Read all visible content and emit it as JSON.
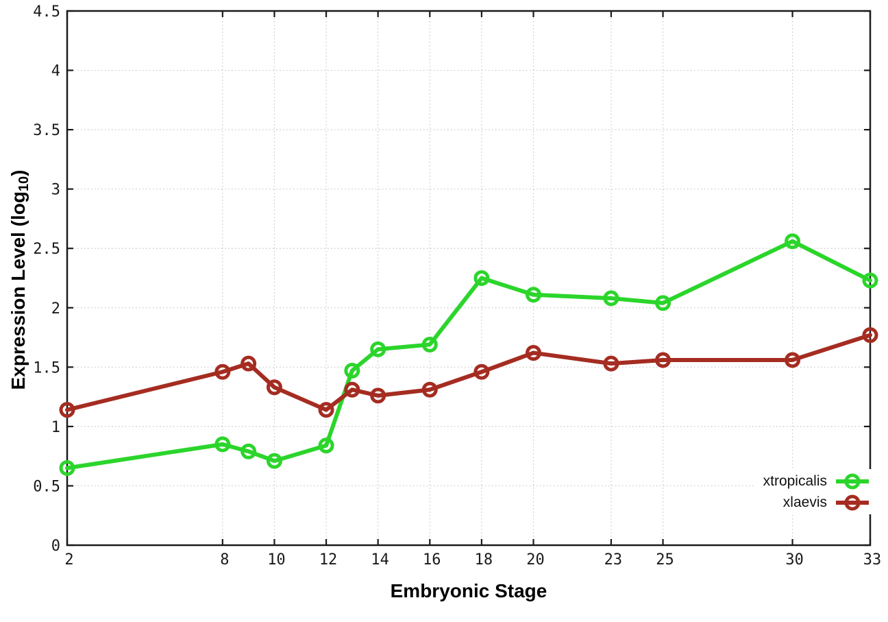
{
  "chart_data": {
    "type": "line",
    "title": "",
    "xlabel": "Embryonic Stage",
    "ylabel": "Expression Level (log10)",
    "xlim": [
      2,
      33
    ],
    "ylim": [
      0,
      4.5
    ],
    "grid": true,
    "legend_position": "bottom-right",
    "x": [
      2,
      8,
      9,
      10,
      12,
      13,
      14,
      16,
      18,
      20,
      23,
      25,
      30,
      33
    ],
    "xticks": [
      2,
      8,
      10,
      12,
      14,
      16,
      18,
      20,
      23,
      25,
      30,
      33
    ],
    "xtick_labels": [
      "2",
      "8",
      "10",
      "12",
      "14",
      "16",
      "18",
      "20",
      "23",
      "25",
      "30",
      "33"
    ],
    "yticks": [
      0,
      0.5,
      1,
      1.5,
      2,
      2.5,
      3,
      3.5,
      4,
      4.5
    ],
    "ytick_labels": [
      "0",
      "0.5",
      "1",
      "1.5",
      "2",
      "2.5",
      "3",
      "3.5",
      "4",
      "4.5"
    ],
    "series": [
      {
        "name": "xtropicalis",
        "color": "#2bd52b",
        "values": [
          0.65,
          0.85,
          0.79,
          0.71,
          0.84,
          1.47,
          1.65,
          1.69,
          2.25,
          2.11,
          2.08,
          2.04,
          2.56,
          2.23
        ]
      },
      {
        "name": "xlaevis",
        "color": "#a52c21",
        "values": [
          1.14,
          1.46,
          1.53,
          1.33,
          1.14,
          1.31,
          1.26,
          1.31,
          1.46,
          1.62,
          1.53,
          1.56,
          1.56,
          1.77
        ]
      }
    ]
  },
  "labels": {
    "xlabel": "Embryonic Stage",
    "ylabel_main": "Expression Level (log",
    "ylabel_sub": "10",
    "ylabel_close": ")"
  },
  "colors": {
    "background": "#ffffff",
    "border": "#1a1a1a",
    "gridline": "#c4c4c4",
    "tick_text": "#1a1a1a"
  }
}
